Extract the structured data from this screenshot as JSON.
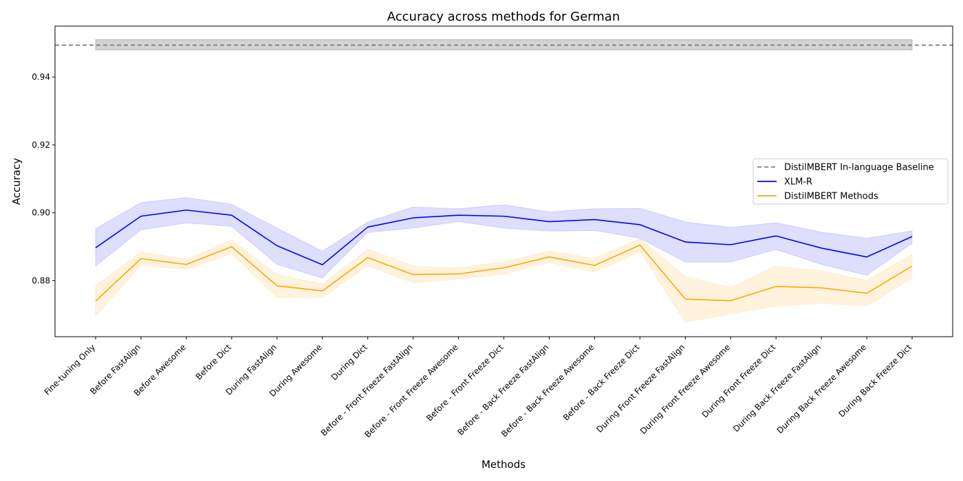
{
  "chart_data": {
    "type": "line",
    "title": "Accuracy across methods for German",
    "xlabel": "Methods",
    "ylabel": "Accuracy",
    "categories": [
      "Fine-tuning Only",
      "Before FastAlign",
      "Before Awesome",
      "Before Dict",
      "During FastAlign",
      "During Awesome",
      "During Dict",
      "Before - Front Freeze FastAlign",
      "Before - Front Freeze Awesome",
      "Before - Front Freeze Dict",
      "Before - Back Freeze FastAlign",
      "Before - Back Freeze Awesome",
      "Before - Back Freeze Dict",
      "During Front Freeze FastAlign",
      "During Front Freeze Awesome",
      "During Front Freeze Dict",
      "During Back Freeze FastAlign",
      "During Back Freeze Awesome",
      "During Back Freeze Dict"
    ],
    "ylim": [
      0.8635,
      0.955
    ],
    "yticks": [
      "0.88",
      "0.90",
      "0.92",
      "0.94"
    ],
    "grid": false,
    "legend_placement": "center-right",
    "baseline": {
      "name": "DistilMBERT In-language Baseline",
      "value": 0.9494,
      "band": [
        0.948,
        0.951
      ],
      "color": "#808080"
    },
    "series": [
      {
        "name": "XLM-R",
        "color": "#0000ff",
        "values": [
          0.8897,
          0.899,
          0.9008,
          0.8993,
          0.8903,
          0.8847,
          0.8958,
          0.8985,
          0.8993,
          0.899,
          0.8974,
          0.898,
          0.8965,
          0.8914,
          0.8906,
          0.8932,
          0.8896,
          0.887,
          0.893
        ],
        "lower": [
          0.8843,
          0.895,
          0.897,
          0.896,
          0.8848,
          0.8808,
          0.8942,
          0.8955,
          0.8974,
          0.8955,
          0.8946,
          0.8948,
          0.8925,
          0.8855,
          0.8855,
          0.8892,
          0.8848,
          0.8816,
          0.891
        ],
        "upper": [
          0.8953,
          0.903,
          0.9045,
          0.9025,
          0.8955,
          0.8887,
          0.8973,
          0.9017,
          0.9012,
          0.9024,
          0.9003,
          0.9012,
          0.9013,
          0.8973,
          0.8957,
          0.8971,
          0.8943,
          0.8925,
          0.8947
        ]
      },
      {
        "name": "DistilMBERT Methods",
        "color": "#ffa500",
        "values": [
          0.874,
          0.8865,
          0.8848,
          0.89,
          0.8785,
          0.877,
          0.8868,
          0.8818,
          0.882,
          0.8838,
          0.887,
          0.8845,
          0.8905,
          0.8746,
          0.8741,
          0.8783,
          0.8779,
          0.8763,
          0.8843
        ],
        "lower": [
          0.8696,
          0.8845,
          0.8833,
          0.8879,
          0.8751,
          0.875,
          0.8844,
          0.8794,
          0.8804,
          0.882,
          0.8853,
          0.8825,
          0.8885,
          0.8678,
          0.8702,
          0.8725,
          0.8733,
          0.8726,
          0.8807
        ],
        "upper": [
          0.8785,
          0.8885,
          0.8863,
          0.892,
          0.8818,
          0.879,
          0.8893,
          0.8843,
          0.8838,
          0.8856,
          0.8887,
          0.8866,
          0.8924,
          0.8812,
          0.878,
          0.8843,
          0.8829,
          0.8801,
          0.8878
        ]
      }
    ]
  }
}
